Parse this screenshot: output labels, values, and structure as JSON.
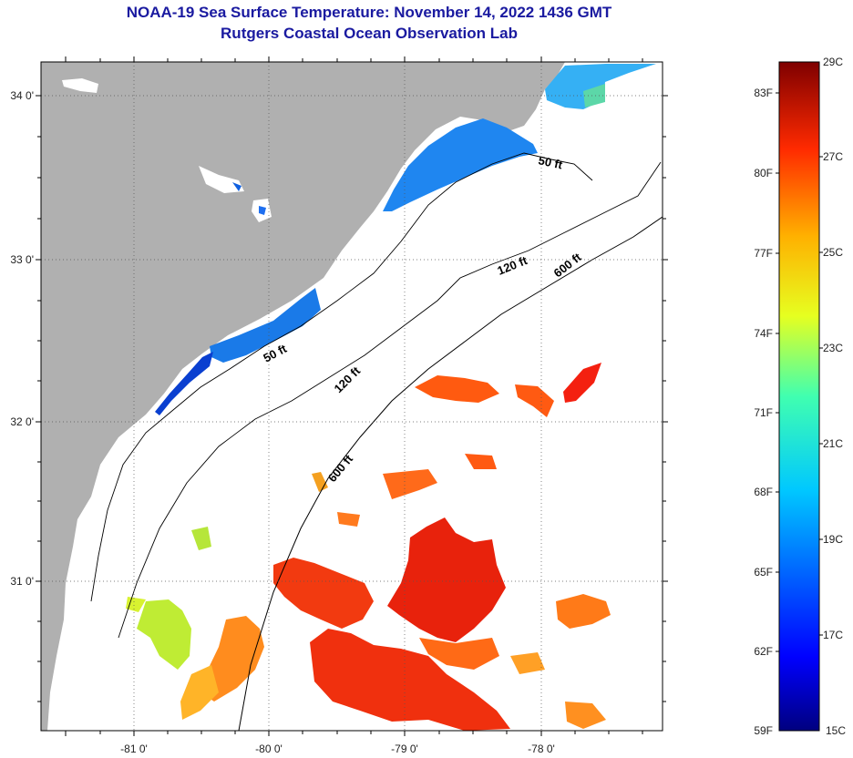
{
  "header": {
    "title": "NOAA-19 Sea Surface Temperature:  November 14, 2022 1436 GMT",
    "subtitle": "Rutgers Coastal Ocean Observation Lab"
  },
  "map": {
    "lat_labels": [
      "34 0'",
      "33 0'",
      "32 0'",
      "31 0'"
    ],
    "lon_labels": [
      "-81 0'",
      "-80 0'",
      "-79 0'",
      "-78 0'"
    ],
    "depth_labels": [
      "50 ft",
      "50 ft",
      "120 ft",
      "120 ft",
      "600 ft",
      "600 ft"
    ],
    "land_color": "#b0b0b0"
  },
  "colorbar": {
    "fahrenheit": [
      "83F",
      "80F",
      "77F",
      "74F",
      "71F",
      "68F",
      "65F",
      "62F",
      "59F"
    ],
    "celsius": [
      "29C",
      "27C",
      "25C",
      "23C",
      "21C",
      "19C",
      "17C",
      "15C"
    ],
    "min_c": 15,
    "max_c": 29
  }
}
